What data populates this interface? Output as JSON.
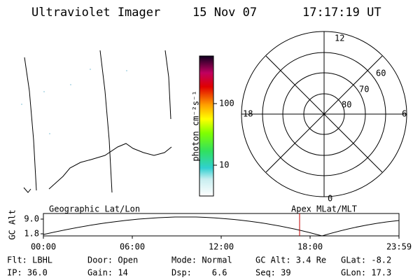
{
  "header": {
    "title": "Ultraviolet Imager",
    "date": "15 Nov 07",
    "time": "17:17:19 UT"
  },
  "colorbar": {
    "label": "photon cm⁻²s⁻¹",
    "ticks": [
      "100",
      "10"
    ]
  },
  "polar_plot": {
    "mlt_labels": [
      "12",
      "18",
      "6",
      "0"
    ],
    "lat_labels": [
      "60",
      "70",
      "80"
    ]
  },
  "timeline": {
    "y_axis_label": "GC Alt",
    "y_ticks": [
      "9.0",
      "1.8"
    ],
    "left_label": "Geographic Lat/Lon",
    "right_label": "Apex MLat/MLT",
    "x_ticks": [
      "00:00",
      "06:00",
      "12:00",
      "18:00",
      "23:59"
    ]
  },
  "info": {
    "rows": [
      [
        "Flt: LBHL",
        "Door: Open",
        "Mode: Normal",
        "GC Alt: 3.4 Re",
        "GLat: -8.2"
      ],
      [
        "IP: 36.0",
        "Gain: 14",
        "Dsp:    6.6",
        "Seq: 39",
        "GLon: 17.3"
      ]
    ]
  }
}
